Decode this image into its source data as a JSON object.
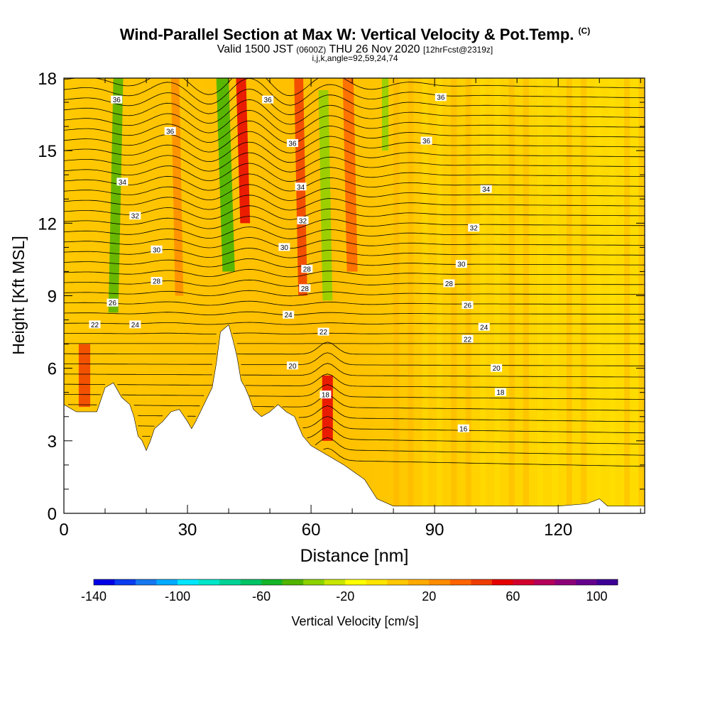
{
  "title": {
    "main": "Wind-Parallel Section at Max W: Vertical Velocity & Pot.Temp.",
    "copyright": "(C)",
    "valid_prefix": "Valid 1500 JST",
    "valid_utc": "(0600Z)",
    "valid_date": "THU 26 Nov 2020",
    "forecast": "[12hrFcst@2319z]",
    "section_params": "i,j,k,angle=92,59,24,74"
  },
  "chart_data": {
    "type": "heatmap",
    "xlabel": "Distance [nm]",
    "ylabel": "Height [Kft MSL]",
    "xlim": [
      0,
      141
    ],
    "ylim": [
      0,
      18
    ],
    "x_ticks": [
      "0",
      "30",
      "60",
      "90",
      "120"
    ],
    "x_tick_values": [
      0,
      30,
      60,
      90,
      120
    ],
    "y_ticks": [
      "0",
      "3",
      "6",
      "9",
      "12",
      "15",
      "18"
    ],
    "y_tick_values": [
      0,
      3,
      6,
      9,
      12,
      15,
      18
    ],
    "grid": false,
    "colorbar": {
      "label": "Vertical Velocity [cm/s]",
      "tick_labels": [
        "-140",
        "-100",
        "-60",
        "-20",
        "20",
        "60",
        "100"
      ],
      "tick_values": [
        -140,
        -100,
        -60,
        -20,
        20,
        60,
        100
      ],
      "range": [
        -140,
        110
      ],
      "colors": [
        "#0000e6",
        "#0a3cf0",
        "#1478f0",
        "#00aaff",
        "#00e6ff",
        "#00e6c8",
        "#00d296",
        "#00c364",
        "#14b428",
        "#50b400",
        "#8cd200",
        "#c8e600",
        "#ffff00",
        "#ffe600",
        "#ffc800",
        "#ffaa00",
        "#ff8c00",
        "#ff6400",
        "#f03c00",
        "#e60000",
        "#d2002d",
        "#b4005a",
        "#8c0078",
        "#64008c",
        "#3c0096"
      ]
    },
    "theta_contour_labels": [
      {
        "text": "36",
        "x": 12.8,
        "y": 17.1
      },
      {
        "text": "36",
        "x": 49.5,
        "y": 17.1
      },
      {
        "text": "36",
        "x": 91.5,
        "y": 17.2
      },
      {
        "text": "36",
        "x": 88,
        "y": 15.4
      },
      {
        "text": "36",
        "x": 55.5,
        "y": 15.3
      },
      {
        "text": "36",
        "x": 25.8,
        "y": 15.8
      },
      {
        "text": "34",
        "x": 14.2,
        "y": 13.7
      },
      {
        "text": "34",
        "x": 57.5,
        "y": 13.5
      },
      {
        "text": "34",
        "x": 102.5,
        "y": 13.4
      },
      {
        "text": "32",
        "x": 17.3,
        "y": 12.3
      },
      {
        "text": "32",
        "x": 58,
        "y": 12.1
      },
      {
        "text": "32",
        "x": 99.5,
        "y": 11.8
      },
      {
        "text": "30",
        "x": 22.5,
        "y": 10.9
      },
      {
        "text": "30",
        "x": 53.5,
        "y": 11.0
      },
      {
        "text": "30",
        "x": 96.5,
        "y": 10.3
      },
      {
        "text": "28",
        "x": 22.5,
        "y": 9.6
      },
      {
        "text": "28",
        "x": 59,
        "y": 10.1
      },
      {
        "text": "28",
        "x": 58.5,
        "y": 9.3
      },
      {
        "text": "28",
        "x": 93.5,
        "y": 9.5
      },
      {
        "text": "26",
        "x": 11.8,
        "y": 8.7
      },
      {
        "text": "26",
        "x": 98,
        "y": 8.6
      },
      {
        "text": "24",
        "x": 17.3,
        "y": 7.8
      },
      {
        "text": "24",
        "x": 54.5,
        "y": 8.2
      },
      {
        "text": "24",
        "x": 102,
        "y": 7.7
      },
      {
        "text": "22",
        "x": 7.5,
        "y": 7.8
      },
      {
        "text": "22",
        "x": 63,
        "y": 7.5
      },
      {
        "text": "22",
        "x": 98,
        "y": 7.2
      },
      {
        "text": "20",
        "x": 55.5,
        "y": 6.1
      },
      {
        "text": "20",
        "x": 105,
        "y": 6.0
      },
      {
        "text": "18",
        "x": 63.5,
        "y": 4.9
      },
      {
        "text": "18",
        "x": 106,
        "y": 5.0
      },
      {
        "text": "16",
        "x": 97,
        "y": 3.5
      }
    ],
    "updraft_columns_x": [
      5,
      28,
      44,
      58,
      64,
      70
    ],
    "downdraft_columns_x": [
      12,
      40,
      64,
      78
    ],
    "terrain_profile": [
      [
        0,
        4.5
      ],
      [
        3,
        4.2
      ],
      [
        8,
        4.2
      ],
      [
        10,
        5.2
      ],
      [
        12,
        5.4
      ],
      [
        14,
        4.8
      ],
      [
        16,
        4.5
      ],
      [
        17,
        4.0
      ],
      [
        18,
        3.2
      ],
      [
        19,
        3.0
      ],
      [
        20,
        2.6
      ],
      [
        21,
        3.0
      ],
      [
        22,
        3.5
      ],
      [
        24,
        3.8
      ],
      [
        26,
        4.2
      ],
      [
        28,
        4.3
      ],
      [
        30,
        3.8
      ],
      [
        31,
        3.5
      ],
      [
        32,
        3.8
      ],
      [
        34,
        4.5
      ],
      [
        36,
        5.2
      ],
      [
        37,
        6.2
      ],
      [
        38,
        7.5
      ],
      [
        40,
        7.8
      ],
      [
        41,
        7.2
      ],
      [
        42,
        6.5
      ],
      [
        43,
        5.5
      ],
      [
        44,
        5.2
      ],
      [
        45,
        4.8
      ],
      [
        46,
        4.3
      ],
      [
        48,
        4.0
      ],
      [
        50,
        4.2
      ],
      [
        52,
        4.5
      ],
      [
        54,
        4.2
      ],
      [
        56,
        4.0
      ],
      [
        58,
        3.2
      ],
      [
        60,
        2.8
      ],
      [
        62,
        2.6
      ],
      [
        65,
        2.3
      ],
      [
        68,
        2.0
      ],
      [
        73,
        1.4
      ],
      [
        76,
        0.6
      ],
      [
        80,
        0.3
      ],
      [
        90,
        0.3
      ],
      [
        100,
        0.3
      ],
      [
        110,
        0.3
      ],
      [
        120,
        0.3
      ],
      [
        127,
        0.4
      ],
      [
        130,
        0.6
      ],
      [
        132,
        0.3
      ],
      [
        141,
        0.3
      ]
    ]
  }
}
